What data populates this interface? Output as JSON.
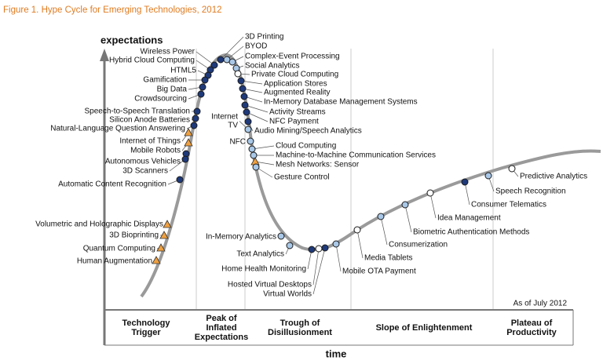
{
  "title": "Figure 1. Hype Cycle for Emerging Technologies, 2012",
  "y_axis_label": "expectations",
  "x_axis_label": "time",
  "as_of": "As of July 2012",
  "phases": [
    [
      "Technology",
      "Trigger"
    ],
    [
      "Peak of",
      "Inflated",
      "Expectations"
    ],
    [
      "Trough of",
      "Disillusionment"
    ],
    [
      "Slope of Enlightenment"
    ],
    [
      "Plateau of",
      "Productivity"
    ]
  ],
  "technologies": [
    "3D Printing",
    "BYOD",
    "Complex-Event Processing",
    "Social Analytics",
    "Private Cloud Computing",
    "Application Stores",
    "Augmented Reality",
    "In-Memory Database Management Systems",
    "Activity Streams",
    "NFC Payment",
    "Audio Mining/Speech Analytics",
    [
      "Internet",
      "TV"
    ],
    "NFC",
    "Cloud Computing",
    "Machine-to-Machine Communication Services",
    "Mesh Networks: Sensor",
    "Gesture Control",
    "Wireless Power",
    "Hybrid Cloud Computing",
    "HTML5",
    "Gamification",
    "Big Data",
    "Crowdsourcing",
    "Speech-to-Speech Translation",
    "Silicon Anode Batteries",
    "Natural-Language Question Answering",
    "Internet of Things",
    "Mobile Robots",
    "Autonomous Vehicles",
    "3D Scanners",
    "Automatic Content Recognition",
    "Volumetric and Holographic Displays",
    "3D Bioprinting",
    "Quantum Computing",
    "Human Augmentation",
    "In-Memory Analytics",
    "Text Analytics",
    "Home Health Monitoring",
    "Hosted Virtual Desktops",
    "Virtual Worlds",
    "Mobile OTA Payment",
    "Media Tablets",
    "Consumerization",
    "Biometric Authentication Methods",
    "Idea Management",
    "Consumer Telematics",
    "Speech Recognition",
    "Predictive Analytics"
  ]
}
